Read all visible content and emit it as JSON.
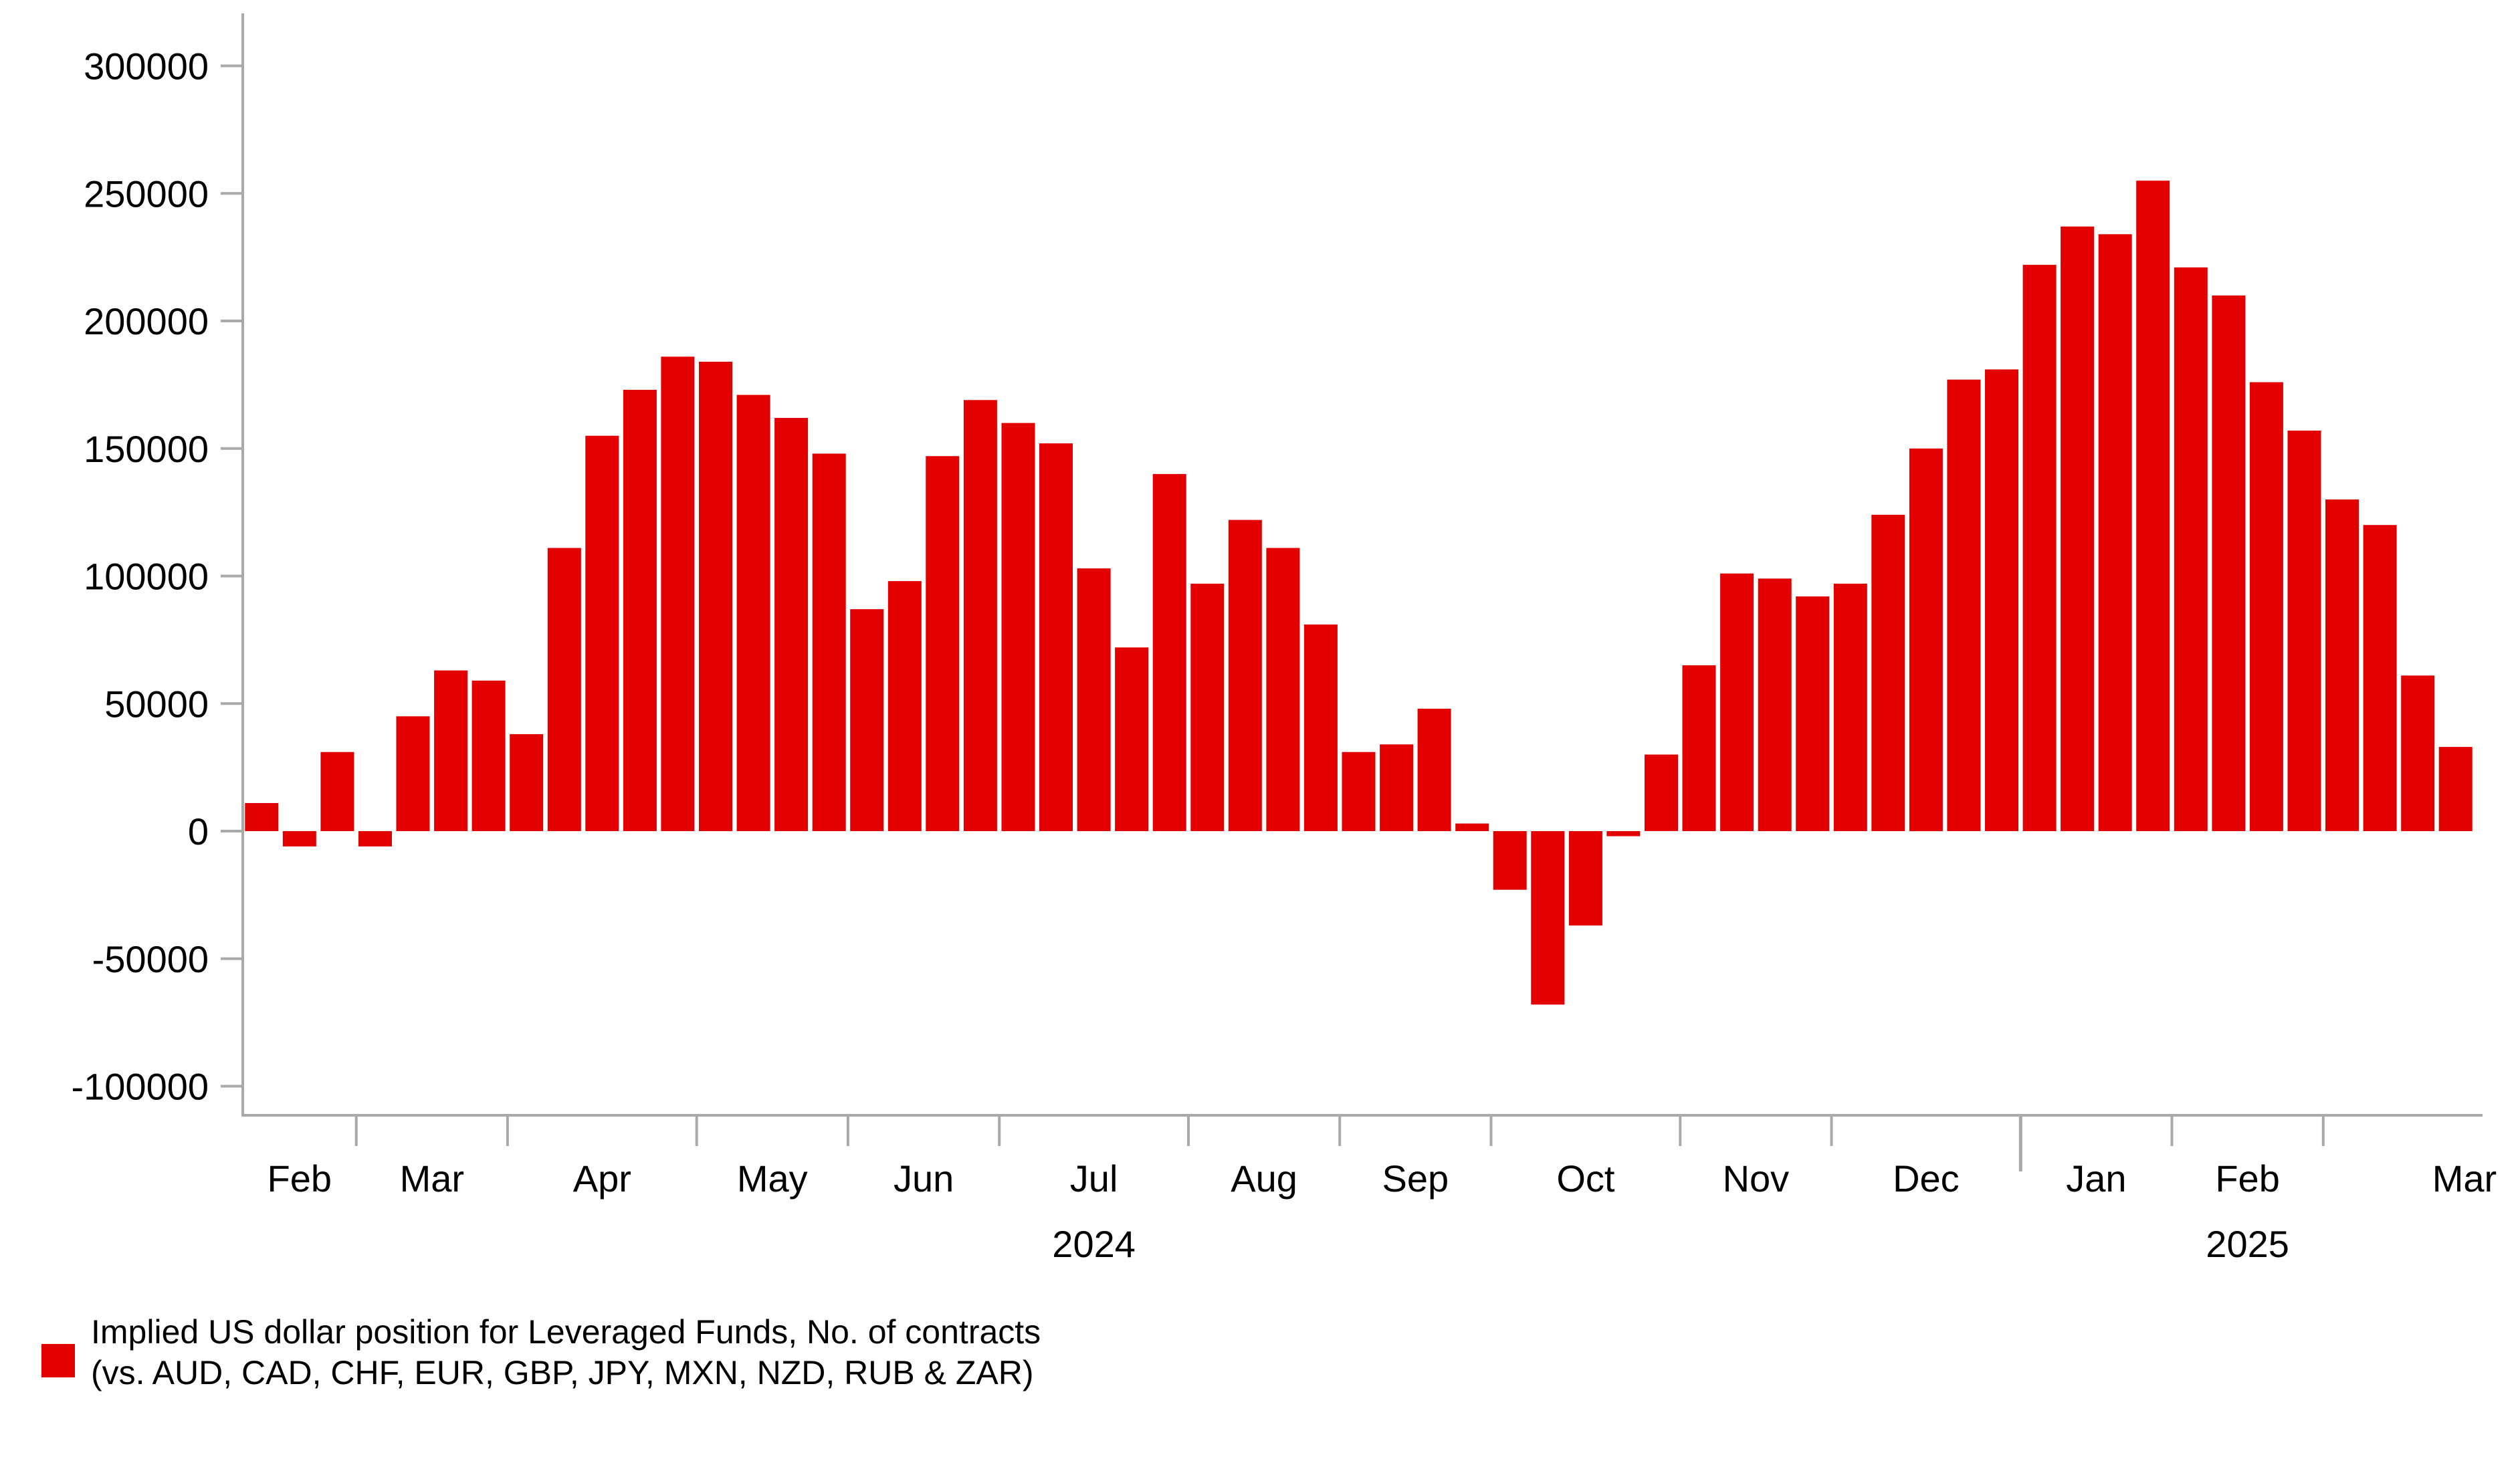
{
  "chart_data": {
    "type": "bar",
    "frequency": "weekly",
    "title": "",
    "values": [
      11000,
      -6000,
      31000,
      -6000,
      45000,
      63000,
      59000,
      38000,
      111000,
      155000,
      173000,
      186000,
      184000,
      171000,
      162000,
      148000,
      87000,
      98000,
      147000,
      169000,
      160000,
      152000,
      103000,
      72000,
      140000,
      97000,
      122000,
      111000,
      81000,
      31000,
      34000,
      48000,
      3000,
      -23000,
      -68000,
      -37000,
      -2000,
      30000,
      65000,
      101000,
      99000,
      92000,
      97000,
      124000,
      150000,
      177000,
      181000,
      222000,
      237000,
      234000,
      255000,
      221000,
      210000,
      176000,
      157000,
      130000,
      120000,
      61000,
      33000
    ],
    "months": [
      {
        "label": "Feb",
        "weeks": 3
      },
      {
        "label": "Mar",
        "weeks": 4
      },
      {
        "label": "Apr",
        "weeks": 5
      },
      {
        "label": "May",
        "weeks": 4
      },
      {
        "label": "Jun",
        "weeks": 4
      },
      {
        "label": "Jul",
        "weeks": 5
      },
      {
        "label": "Aug",
        "weeks": 4
      },
      {
        "label": "Sep",
        "weeks": 4
      },
      {
        "label": "Oct",
        "weeks": 5
      },
      {
        "label": "Nov",
        "weeks": 4
      },
      {
        "label": "Dec",
        "weeks": 5
      },
      {
        "label": "Jan",
        "weeks": 4
      },
      {
        "label": "Feb",
        "weeks": 4
      },
      {
        "label": "Mar",
        "weeks": 4
      }
    ],
    "year_labels": [
      {
        "text": "2024",
        "month_index": 5
      },
      {
        "text": "2025",
        "month_index": 12
      }
    ],
    "y_ticks": [
      300000,
      250000,
      200000,
      150000,
      100000,
      50000,
      0,
      -50000,
      -100000
    ],
    "ylim": [
      -100000,
      300000
    ],
    "grid": "off",
    "legend_position": "bottom-left",
    "bar_color": "#e20000",
    "axis_color": "#a9a9a9",
    "text_color": "#000000"
  },
  "legend": {
    "line1": "Implied US dollar position for Leveraged Funds, No. of contracts",
    "line2": "(vs. AUD, CAD, CHF, EUR, GBP, JPY, MXN, NZD, RUB & ZAR)"
  }
}
